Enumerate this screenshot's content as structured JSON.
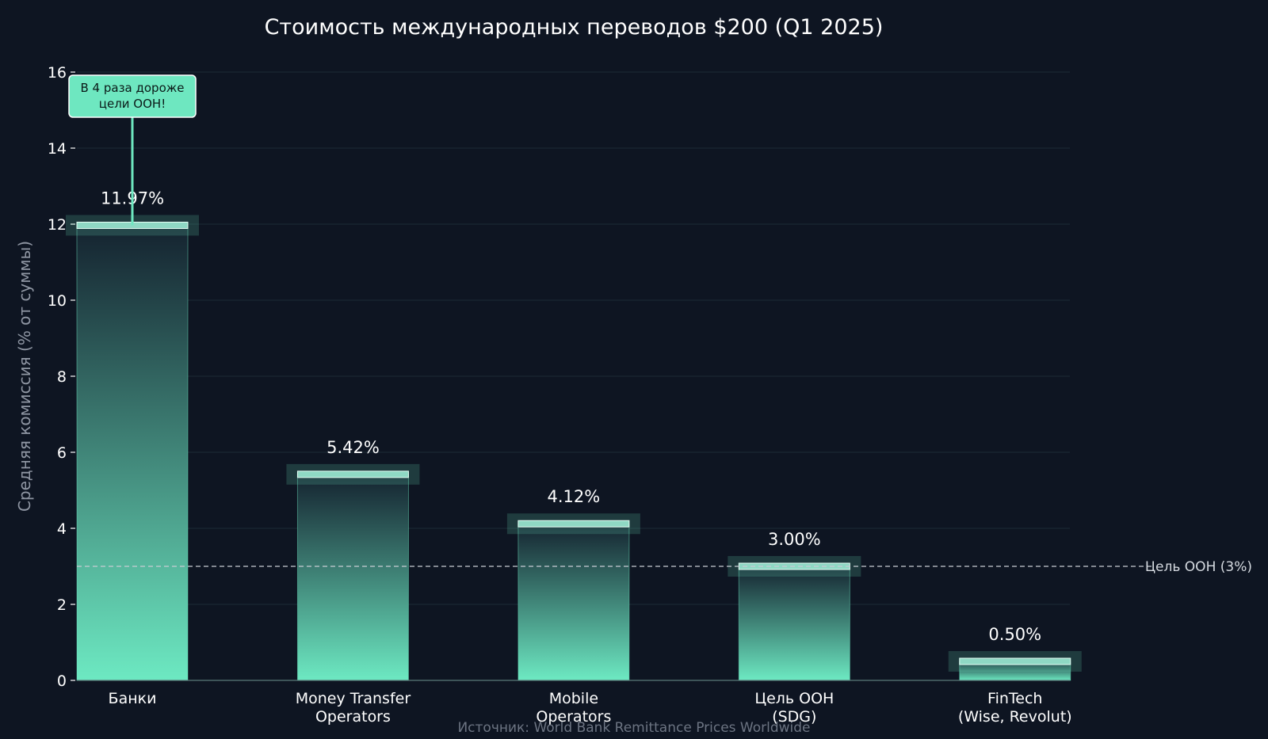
{
  "chart_data": {
    "type": "bar",
    "title": "Стоимость международных переводов $200 (Q1 2025)",
    "ylabel": "Средняя комиссия (% от суммы)",
    "xlabel": "",
    "ylim": [
      0,
      16
    ],
    "yticks": [
      0,
      2,
      4,
      6,
      8,
      10,
      12,
      14,
      16
    ],
    "grid": true,
    "categories": [
      [
        "Банки"
      ],
      [
        "Money Transfer",
        "Operators"
      ],
      [
        "Mobile",
        "Operators"
      ],
      [
        "Цель ООН",
        "(SDG)"
      ],
      [
        "FinTech",
        "(Wise, Revolut)"
      ]
    ],
    "values": [
      11.97,
      5.42,
      4.12,
      3.0,
      0.5
    ],
    "value_labels": [
      "11.97%",
      "5.42%",
      "4.12%",
      "3.00%",
      "0.50%"
    ],
    "reference_line": {
      "value": 3,
      "label": "Цель ООН (3%)"
    },
    "annotation": {
      "category_index": 0,
      "lines": [
        "В 4 раза дороже",
        "цели ООН!"
      ]
    },
    "source": "Источник: World Bank Remittance Prices Worldwide",
    "colors": {
      "background": "#0e1522",
      "bar_top": "#14222f",
      "bar_bottom": "#6de9c2",
      "accent": "#6ee7c0",
      "grid": "#1c2c36",
      "reference": "#c7ccd3"
    }
  }
}
